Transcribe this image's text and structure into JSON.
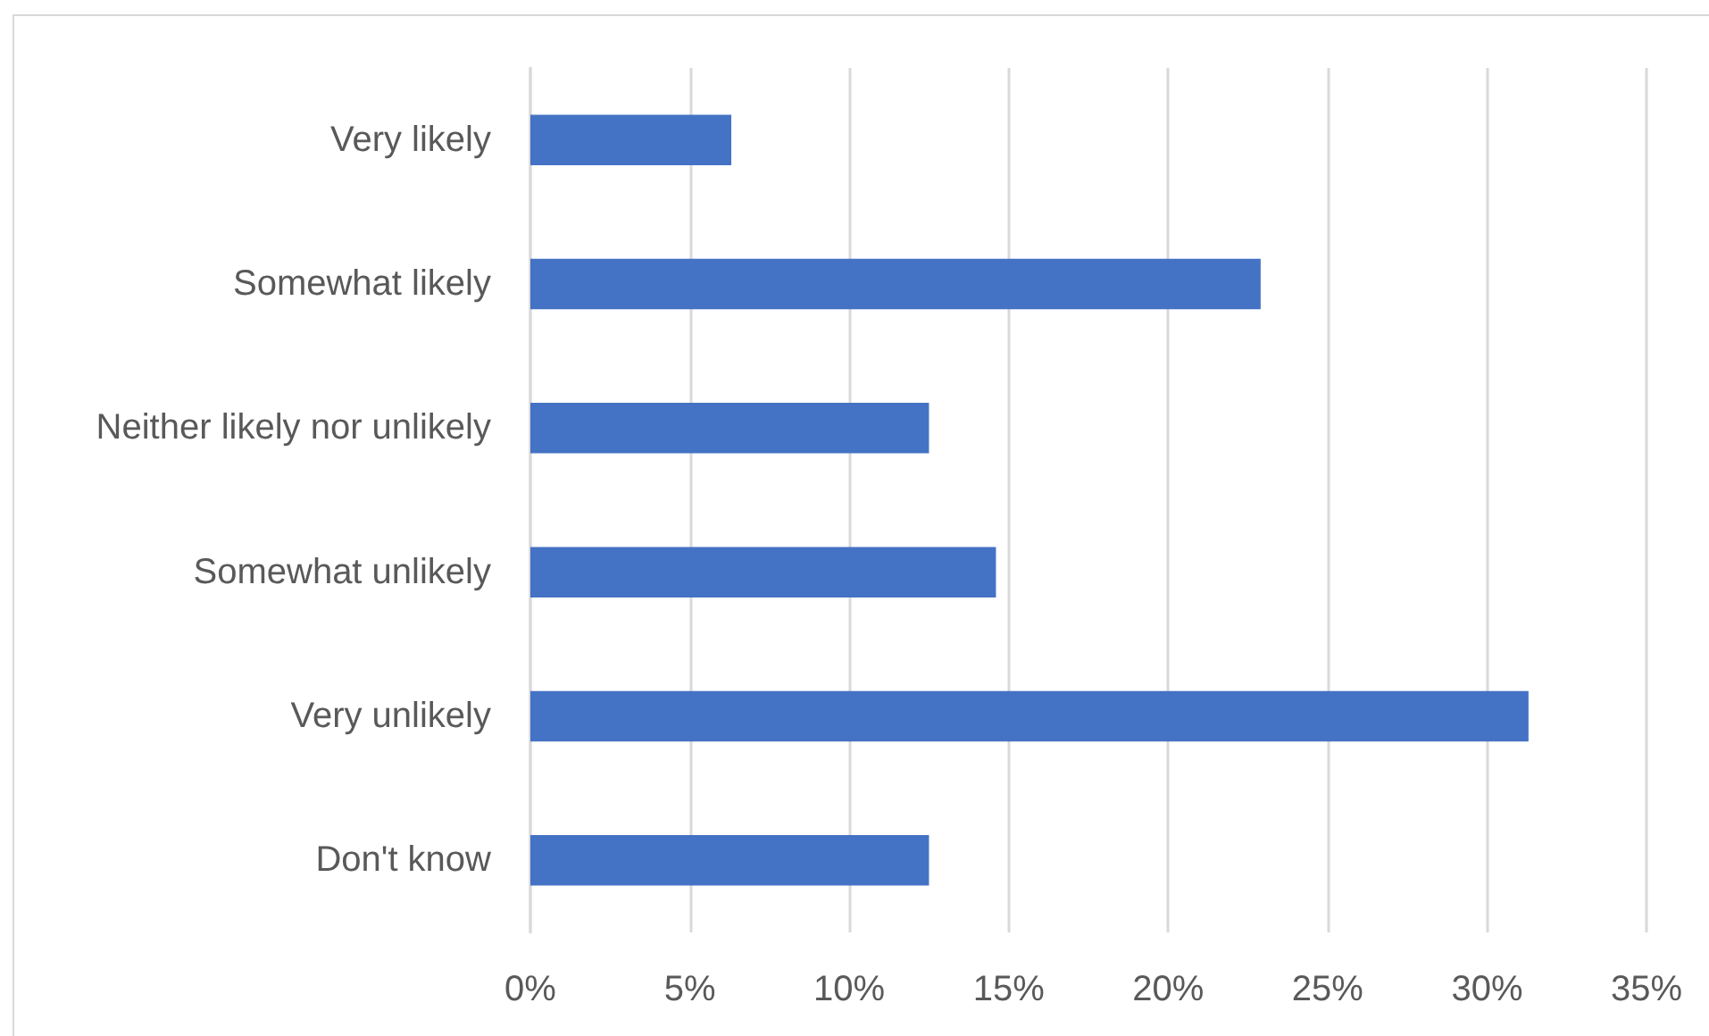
{
  "chart_data": {
    "type": "bar",
    "orientation": "horizontal",
    "categories": [
      "Very likely",
      "Somewhat likely",
      "Neither likely nor unlikely",
      "Somewhat unlikely",
      "Very unlikely",
      "Don't know"
    ],
    "values": [
      6.3,
      22.9,
      12.5,
      14.6,
      31.3,
      12.5
    ],
    "color": "#4472c4",
    "xlim": [
      0,
      35
    ],
    "xticks": [
      {
        "value": 0,
        "label": "0%"
      },
      {
        "value": 5,
        "label": "5%"
      },
      {
        "value": 10,
        "label": "10%"
      },
      {
        "value": 15,
        "label": "15%"
      },
      {
        "value": 20,
        "label": "20%"
      },
      {
        "value": 25,
        "label": "25%"
      },
      {
        "value": 30,
        "label": "30%"
      },
      {
        "value": 35,
        "label": "35%"
      }
    ],
    "grid": "x"
  }
}
